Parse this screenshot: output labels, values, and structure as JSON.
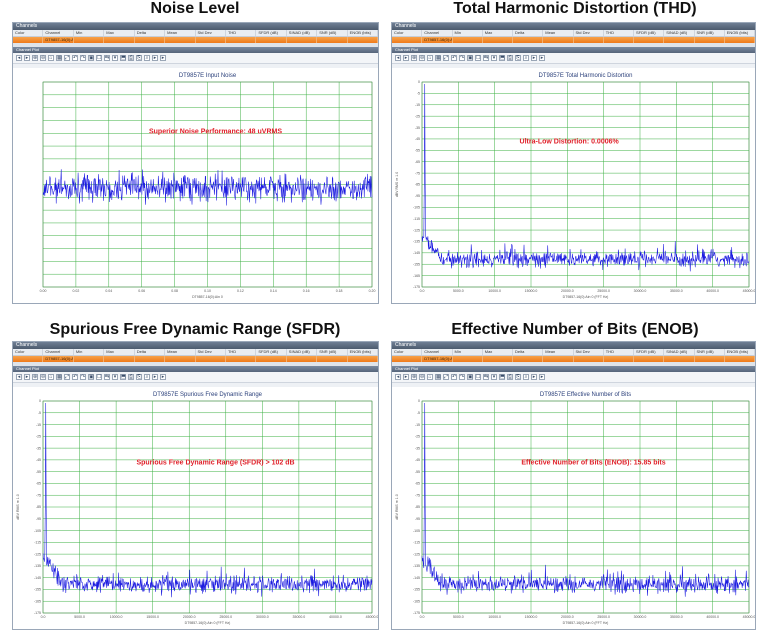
{
  "panels": [
    {
      "heading": "Noise Level",
      "chart_title": "DT9857E Input Noise",
      "annotation": "Superior Noise Performance: 48 uVRMS",
      "x_label": "DT9857-16(0):Ain 0",
      "y_label": "",
      "kind": "noise",
      "x_ticks": [
        "0.00",
        "0.02",
        "0.04",
        "0.06",
        "0.08",
        "0.10",
        "0.12",
        "0.14",
        "0.16",
        "0.18",
        "0.20"
      ],
      "y_ticks": [
        "",
        "",
        "",
        "",
        "",
        "",
        "",
        "",
        "",
        "",
        "",
        "",
        "",
        "",
        "",
        "",
        ""
      ]
    },
    {
      "heading": "Total Harmonic Distortion (THD)",
      "chart_title": "DT9857E Total Harmonic Distortion",
      "annotation": "Ultra-Low Distortion:  0.0006%",
      "x_label": "DT9857-16(0):Ain 0 (FFT Hz)",
      "y_label": "dBV RMS re 1.0",
      "kind": "fft",
      "x_ticks": [
        "0.0",
        "5000.0",
        "10000.0",
        "15000.0",
        "20000.0",
        "25000.0",
        "30000.0",
        "35000.0",
        "40000.0",
        "45000.0"
      ],
      "y_ticks": [
        "0",
        "-5",
        "-15",
        "-25",
        "-35",
        "-45",
        "-55",
        "-65",
        "-75",
        "-85",
        "-95",
        "-105",
        "-115",
        "-125",
        "-135",
        "-145",
        "-155",
        "-165",
        "-175"
      ]
    },
    {
      "heading": "Spurious Free Dynamic Range (SFDR)",
      "chart_title": "DT9857E Spurious Free Dynamic Range",
      "annotation": "Spurious Free Dynamic Range (SFDR) > 102 dB",
      "x_label": "DT9857-16(0):Ain 0 (FFT Hz)",
      "y_label": "dBV RMS re 1.0",
      "kind": "fft",
      "x_ticks": [
        "0.0",
        "5000.0",
        "10000.0",
        "15000.0",
        "20000.0",
        "25000.0",
        "30000.0",
        "35000.0",
        "40000.0",
        "45000.0"
      ],
      "y_ticks": [
        "0",
        "-5",
        "-15",
        "-25",
        "-35",
        "-45",
        "-55",
        "-65",
        "-75",
        "-85",
        "-95",
        "-105",
        "-115",
        "-125",
        "-135",
        "-145",
        "-155",
        "-165",
        "-175"
      ]
    },
    {
      "heading": "Effective Number of Bits (ENOB)",
      "chart_title": "DT9857E Effective Number of Bits",
      "annotation": "Effective Number of Bits (ENOB): 15.85 bits",
      "x_label": "DT9857-16(0):Ain 0 (FFT Hz)",
      "y_label": "dBV RMS re 1.0",
      "kind": "fft",
      "x_ticks": [
        "0.0",
        "5000.0",
        "10000.0",
        "15000.0",
        "20000.0",
        "25000.0",
        "30000.0",
        "35000.0",
        "40000.0",
        "45000.0"
      ],
      "y_ticks": [
        "0",
        "-5",
        "-15",
        "-25",
        "-35",
        "-45",
        "-55",
        "-65",
        "-75",
        "-85",
        "-95",
        "-105",
        "-115",
        "-125",
        "-135",
        "-145",
        "-155",
        "-165",
        "-175"
      ]
    }
  ],
  "window": {
    "title": "Channels",
    "sub_title": "Channel Plot",
    "columns": [
      "Color",
      "Channel",
      "Min",
      "Max",
      "Delta",
      "Mean",
      "Std Dev",
      "THD",
      "SFDR (dB)",
      "SINAD (dB)",
      "SNR (dB)",
      "ENOB (bits)"
    ],
    "row": [
      "",
      "DT9857-16(0):Ain 0",
      "",
      "",
      "",
      "",
      "",
      "",
      "",
      "",
      "",
      ""
    ]
  },
  "colors": {
    "trace": "#1a1adf",
    "grid": "#3cb043",
    "accent": "#ef7a1a",
    "annotation": "#e0202a"
  }
}
